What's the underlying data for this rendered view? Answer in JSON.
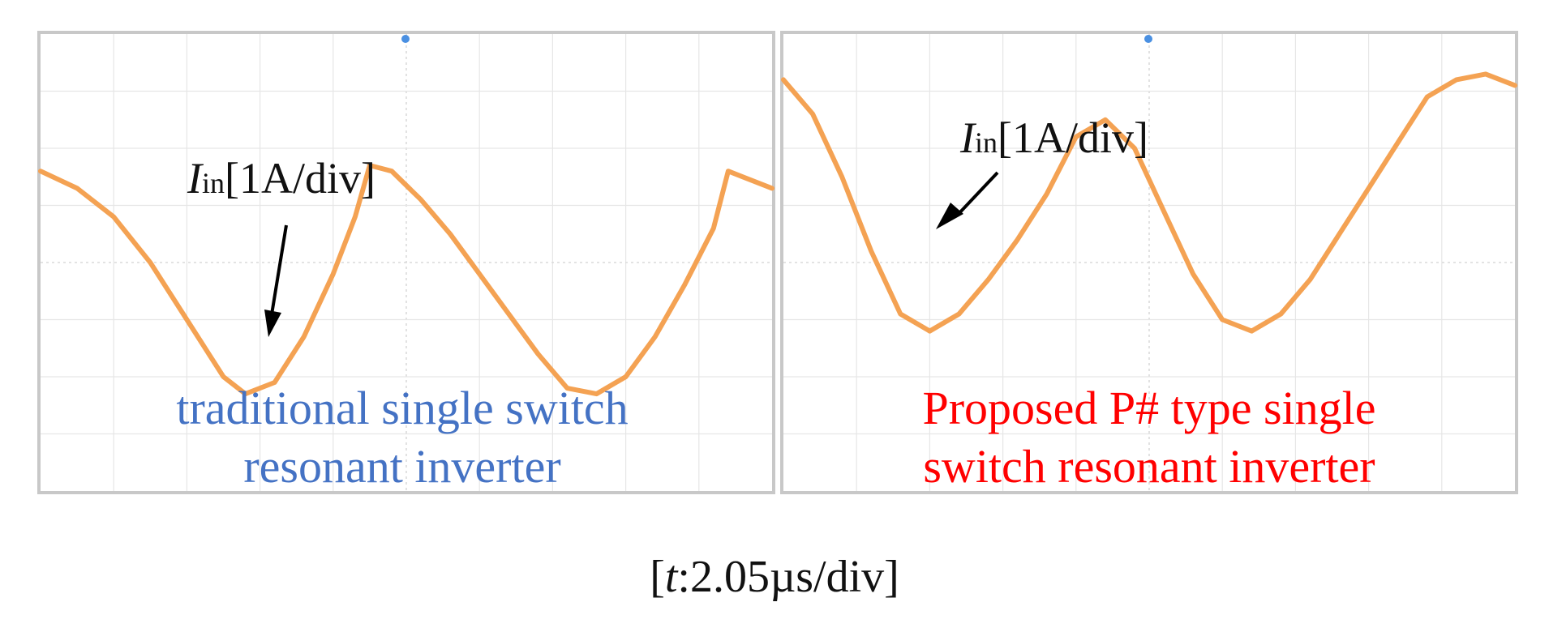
{
  "chart_data": [
    {
      "type": "line",
      "panel": "left",
      "grid": true,
      "x_divisions": 10,
      "y_divisions": 8,
      "xlim": [
        0,
        10
      ],
      "ylim": [
        -4,
        4
      ],
      "series": [
        {
          "color": "#f4a253",
          "x": [
            0,
            0.5,
            1.0,
            1.5,
            2.0,
            2.5,
            2.8,
            3.2,
            3.6,
            4.0,
            4.3,
            4.5,
            4.8,
            5.2,
            5.6,
            6.0,
            6.4,
            6.8,
            7.2,
            7.6,
            8.0,
            8.4,
            8.8,
            9.2,
            9.4,
            9.6,
            10.0
          ],
          "y": [
            1.6,
            1.3,
            0.8,
            0.0,
            -1.0,
            -2.0,
            -2.3,
            -2.1,
            -1.3,
            -0.2,
            0.8,
            1.7,
            1.6,
            1.1,
            0.5,
            -0.2,
            -0.9,
            -1.6,
            -2.2,
            -2.3,
            -2.0,
            -1.3,
            -0.4,
            0.6,
            1.6,
            1.5,
            1.3
          ]
        }
      ],
      "annotation": {
        "symbol": "I",
        "subscript": "in",
        "scale": "[1A/div]"
      },
      "caption_lines": [
        "traditional single switch",
        "resonant inverter"
      ],
      "caption_color": "#4472c4"
    },
    {
      "type": "line",
      "panel": "right",
      "grid": true,
      "x_divisions": 10,
      "y_divisions": 8,
      "xlim": [
        0,
        10
      ],
      "ylim": [
        -4,
        4
      ],
      "series": [
        {
          "color": "#f4a253",
          "x": [
            0,
            0.4,
            0.8,
            1.2,
            1.6,
            2.0,
            2.4,
            2.8,
            3.2,
            3.6,
            4.0,
            4.4,
            4.8,
            5.2,
            5.6,
            6.0,
            6.4,
            6.8,
            7.2,
            7.6,
            8.0,
            8.4,
            8.8,
            9.2,
            9.6,
            10.0
          ],
          "y": [
            3.2,
            2.6,
            1.5,
            0.2,
            -0.9,
            -1.2,
            -0.9,
            -0.3,
            0.4,
            1.2,
            2.2,
            2.5,
            2.0,
            0.9,
            -0.2,
            -1.0,
            -1.2,
            -0.9,
            -0.3,
            0.5,
            1.3,
            2.1,
            2.9,
            3.2,
            3.3,
            3.1
          ]
        }
      ],
      "annotation": {
        "symbol": "I",
        "subscript": "in",
        "scale": "[1A/div]"
      },
      "caption_lines": [
        "Proposed P# type single",
        "switch resonant inverter"
      ],
      "caption_color": "#ff0000"
    }
  ],
  "timebase": "[t:2.05µs/div]"
}
